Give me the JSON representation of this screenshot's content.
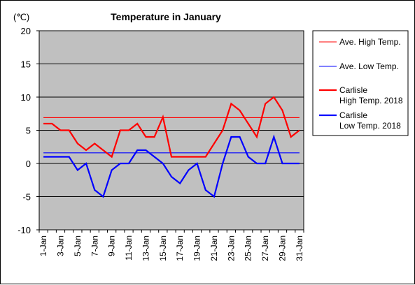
{
  "chart_data": {
    "type": "line",
    "title": "Temperature in January",
    "unit_label": "(℃)",
    "ylim": [
      -10,
      20
    ],
    "yticks": [
      20,
      15,
      10,
      5,
      0,
      -5,
      -10
    ],
    "grid": true,
    "legend_position": "right",
    "categories": [
      "1-Jan",
      "2-Jan",
      "3-Jan",
      "4-Jan",
      "5-Jan",
      "6-Jan",
      "7-Jan",
      "8-Jan",
      "9-Jan",
      "10-Jan",
      "11-Jan",
      "12-Jan",
      "13-Jan",
      "14-Jan",
      "15-Jan",
      "16-Jan",
      "17-Jan",
      "18-Jan",
      "19-Jan",
      "20-Jan",
      "21-Jan",
      "22-Jan",
      "23-Jan",
      "24-Jan",
      "25-Jan",
      "26-Jan",
      "27-Jan",
      "28-Jan",
      "29-Jan",
      "30-Jan",
      "31-Jan"
    ],
    "x_tick_labels": [
      "1-Jan",
      "3-Jan",
      "5-Jan",
      "7-Jan",
      "9-Jan",
      "11-Jan",
      "13-Jan",
      "15-Jan",
      "17-Jan",
      "19-Jan",
      "21-Jan",
      "23-Jan",
      "25-Jan",
      "27-Jan",
      "29-Jan",
      "31-Jan"
    ],
    "reference_lines": [
      {
        "name": "Ave. High Temp.",
        "value": 6.9,
        "color": "#ff0000"
      },
      {
        "name": "Ave. Low Temp.",
        "value": 1.6,
        "color": "#0000ff"
      }
    ],
    "series": [
      {
        "name": "Carlisle High Temp. 2018",
        "legend_lines": [
          "Carlisle",
          "High Temp. 2018"
        ],
        "color": "#ff0000",
        "values": [
          6,
          6,
          5,
          5,
          3,
          2,
          3,
          2,
          1,
          5,
          5,
          6,
          4,
          4,
          7,
          1,
          1,
          1,
          1,
          1,
          3,
          5,
          9,
          8,
          6,
          4,
          9,
          10,
          8,
          4,
          5
        ]
      },
      {
        "name": "Carlisle Low Temp. 2018",
        "legend_lines": [
          "Carlisle",
          "Low Temp. 2018"
        ],
        "color": "#0000ff",
        "values": [
          1,
          1,
          1,
          1,
          -1,
          0,
          -4,
          -5,
          -1,
          0,
          0,
          2,
          2,
          1,
          0,
          -2,
          -3,
          -1,
          0,
          -4,
          -5,
          0,
          4,
          4,
          1,
          0,
          0,
          4,
          0,
          0,
          0
        ]
      }
    ]
  }
}
